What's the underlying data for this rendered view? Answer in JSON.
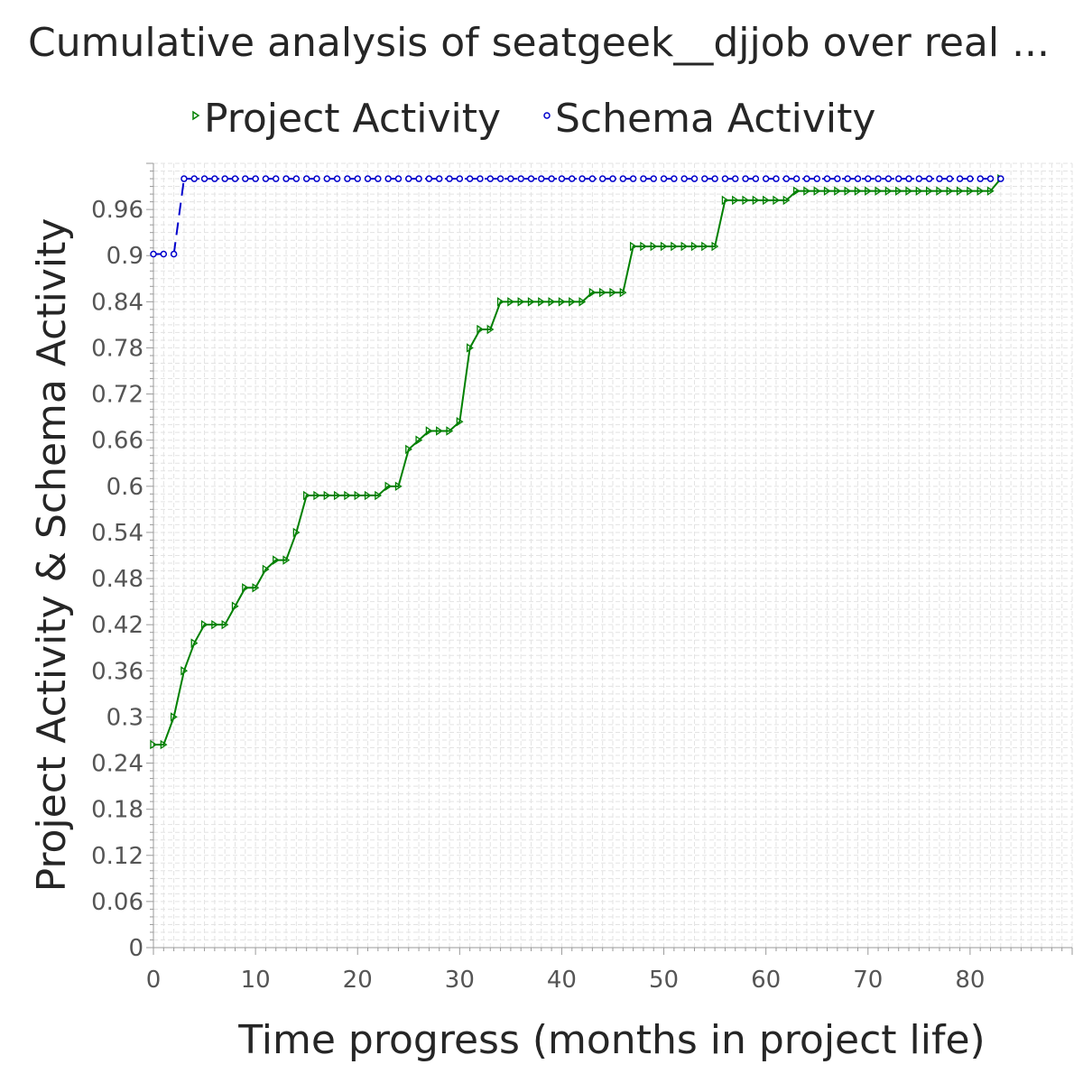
{
  "chart_data": {
    "type": "line",
    "title": "Cumulative analysis of seatgeek__djjob over real ...",
    "xlabel": "Time progress (months in project life)",
    "ylabel": "Project Activity & Schema Activity",
    "xlim": [
      0,
      90
    ],
    "ylim": [
      0,
      1.02
    ],
    "x_ticks": [
      0,
      10,
      20,
      30,
      40,
      50,
      60,
      70,
      80
    ],
    "y_ticks": [
      0,
      0.06,
      0.12,
      0.18,
      0.24,
      0.3,
      0.36,
      0.42,
      0.48,
      0.54,
      0.6,
      0.66,
      0.72,
      0.78,
      0.84,
      0.9,
      0.96
    ],
    "y_tick_labels": [
      "0",
      "0.06",
      "0.12",
      "0.18",
      "0.24",
      "0.3",
      "0.36",
      "0.42",
      "0.48",
      "0.54",
      "0.6",
      "0.66",
      "0.72",
      "0.78",
      "0.84",
      "0.9",
      "0.96"
    ],
    "grid": true,
    "legend_position": "top",
    "series": [
      {
        "name": "Project Activity",
        "color": "#008000",
        "line_style": "solid",
        "marker": "triangle-right",
        "x": [
          0,
          1,
          2,
          3,
          4,
          5,
          6,
          7,
          8,
          9,
          10,
          11,
          12,
          13,
          14,
          15,
          16,
          17,
          18,
          19,
          20,
          21,
          22,
          23,
          24,
          25,
          26,
          27,
          28,
          29,
          30,
          31,
          32,
          33,
          34,
          35,
          36,
          37,
          38,
          39,
          40,
          41,
          42,
          43,
          44,
          45,
          46,
          47,
          48,
          49,
          50,
          51,
          52,
          53,
          54,
          55,
          56,
          57,
          58,
          59,
          60,
          61,
          62,
          63,
          64,
          65,
          66,
          67,
          68,
          69,
          70,
          71,
          72,
          73,
          74,
          75,
          76,
          77,
          78,
          79,
          80,
          81,
          82,
          83
        ],
        "values": [
          0.264,
          0.264,
          0.3,
          0.36,
          0.396,
          0.42,
          0.42,
          0.42,
          0.444,
          0.468,
          0.468,
          0.492,
          0.504,
          0.504,
          0.54,
          0.588,
          0.588,
          0.588,
          0.588,
          0.588,
          0.588,
          0.588,
          0.588,
          0.6,
          0.6,
          0.648,
          0.66,
          0.672,
          0.672,
          0.672,
          0.684,
          0.78,
          0.804,
          0.804,
          0.84,
          0.84,
          0.84,
          0.84,
          0.84,
          0.84,
          0.84,
          0.84,
          0.84,
          0.852,
          0.852,
          0.852,
          0.852,
          0.912,
          0.912,
          0.912,
          0.912,
          0.912,
          0.912,
          0.912,
          0.912,
          0.912,
          0.972,
          0.972,
          0.972,
          0.972,
          0.972,
          0.972,
          0.972,
          0.984,
          0.984,
          0.984,
          0.984,
          0.984,
          0.984,
          0.984,
          0.984,
          0.984,
          0.984,
          0.984,
          0.984,
          0.984,
          0.984,
          0.984,
          0.984,
          0.984,
          0.984,
          0.984,
          0.984,
          1.0
        ]
      },
      {
        "name": "Schema Activity",
        "color": "#0000cc",
        "line_style": "dashed",
        "marker": "circle",
        "x": [
          0,
          1,
          2,
          3,
          4,
          5,
          6,
          7,
          8,
          9,
          10,
          11,
          12,
          13,
          14,
          15,
          16,
          17,
          18,
          19,
          20,
          21,
          22,
          23,
          24,
          25,
          26,
          27,
          28,
          29,
          30,
          31,
          32,
          33,
          34,
          35,
          36,
          37,
          38,
          39,
          40,
          41,
          42,
          43,
          44,
          45,
          46,
          47,
          48,
          49,
          50,
          51,
          52,
          53,
          54,
          55,
          56,
          57,
          58,
          59,
          60,
          61,
          62,
          63,
          64,
          65,
          66,
          67,
          68,
          69,
          70,
          71,
          72,
          73,
          74,
          75,
          76,
          77,
          78,
          79,
          80,
          81,
          82,
          83
        ],
        "values": [
          0.902,
          0.902,
          0.902,
          1.0,
          1.0,
          1.0,
          1.0,
          1.0,
          1.0,
          1.0,
          1.0,
          1.0,
          1.0,
          1.0,
          1.0,
          1.0,
          1.0,
          1.0,
          1.0,
          1.0,
          1.0,
          1.0,
          1.0,
          1.0,
          1.0,
          1.0,
          1.0,
          1.0,
          1.0,
          1.0,
          1.0,
          1.0,
          1.0,
          1.0,
          1.0,
          1.0,
          1.0,
          1.0,
          1.0,
          1.0,
          1.0,
          1.0,
          1.0,
          1.0,
          1.0,
          1.0,
          1.0,
          1.0,
          1.0,
          1.0,
          1.0,
          1.0,
          1.0,
          1.0,
          1.0,
          1.0,
          1.0,
          1.0,
          1.0,
          1.0,
          1.0,
          1.0,
          1.0,
          1.0,
          1.0,
          1.0,
          1.0,
          1.0,
          1.0,
          1.0,
          1.0,
          1.0,
          1.0,
          1.0,
          1.0,
          1.0,
          1.0,
          1.0,
          1.0,
          1.0,
          1.0,
          1.0,
          1.0,
          1.0
        ]
      }
    ]
  }
}
